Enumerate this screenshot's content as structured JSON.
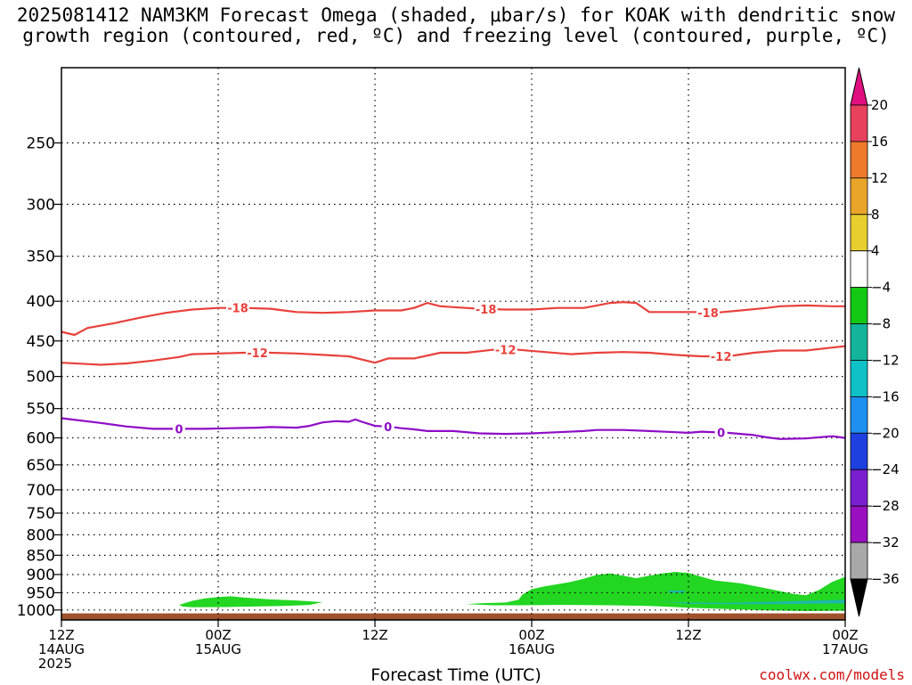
{
  "title_line1": "2025081412 NAM3KM Forecast Omega (shaded, μbar/s) for KOAK with dendritic snow",
  "title_line2": "growth region (contoured, red, ºC) and freezing level (contoured, purple, ºC)",
  "x_axis_label": "Forecast Time (UTC)",
  "credit": "coolwx.com/models",
  "colors": {
    "dgz": "#e8413c",
    "freezing": "#8e0cc6",
    "ground": "#a0522d",
    "omega_light_green": "#22d622",
    "omega_teal": "#1fb8a8"
  },
  "chart_data": {
    "type": "line",
    "y_scale": "log-pressure",
    "y_axis": {
      "ticks": [
        250,
        300,
        350,
        400,
        450,
        500,
        550,
        600,
        650,
        700,
        750,
        800,
        850,
        900,
        950,
        1000
      ],
      "range_hPa": [
        200,
        1030
      ],
      "inverted": true
    },
    "x_axis": {
      "range_hours": [
        0,
        60
      ],
      "ticks": [
        {
          "hour": 0,
          "label1": "12Z",
          "label2": "14AUG",
          "label3": "2025"
        },
        {
          "hour": 12,
          "label1": "00Z",
          "label2": "15AUG",
          "label3": ""
        },
        {
          "hour": 24,
          "label1": "12Z",
          "label2": "",
          "label3": ""
        },
        {
          "hour": 36,
          "label1": "00Z",
          "label2": "16AUG",
          "label3": ""
        },
        {
          "hour": 48,
          "label1": "12Z",
          "label2": "",
          "label3": ""
        },
        {
          "hour": 60,
          "label1": "00Z",
          "label2": "17AUG",
          "label3": ""
        }
      ]
    },
    "grid": "dotted",
    "series": [
      {
        "name": "-18",
        "color_key": "dgz",
        "label_at_hours": [
          13.5,
          32.5,
          49.5
        ],
        "points": [
          [
            0,
            438
          ],
          [
            1,
            442
          ],
          [
            2,
            433
          ],
          [
            4,
            427
          ],
          [
            6,
            420
          ],
          [
            8,
            414
          ],
          [
            10,
            410
          ],
          [
            12,
            408
          ],
          [
            14,
            408
          ],
          [
            16,
            409
          ],
          [
            17,
            411
          ],
          [
            18,
            413
          ],
          [
            20,
            414
          ],
          [
            22,
            413
          ],
          [
            24,
            411
          ],
          [
            26,
            411
          ],
          [
            27,
            408
          ],
          [
            28,
            402
          ],
          [
            29,
            406
          ],
          [
            30,
            407
          ],
          [
            32,
            409
          ],
          [
            34,
            410
          ],
          [
            36,
            410
          ],
          [
            38,
            408
          ],
          [
            40,
            408
          ],
          [
            41,
            405
          ],
          [
            42,
            402
          ],
          [
            43,
            401
          ],
          [
            44,
            402
          ],
          [
            45,
            413
          ],
          [
            47,
            413
          ],
          [
            49,
            413
          ],
          [
            50,
            414
          ],
          [
            52,
            411
          ],
          [
            54,
            408
          ],
          [
            55,
            406
          ],
          [
            57,
            405
          ],
          [
            59,
            406
          ],
          [
            60,
            406
          ]
        ]
      },
      {
        "name": "-12",
        "color_key": "dgz",
        "label_at_hours": [
          15,
          34,
          50.5
        ],
        "points": [
          [
            0,
            480
          ],
          [
            2,
            482
          ],
          [
            3,
            483
          ],
          [
            5,
            481
          ],
          [
            7,
            477
          ],
          [
            9,
            472
          ],
          [
            10,
            468
          ],
          [
            12,
            467
          ],
          [
            14,
            466
          ],
          [
            16,
            466
          ],
          [
            18,
            467
          ],
          [
            20,
            469
          ],
          [
            22,
            471
          ],
          [
            24,
            480
          ],
          [
            25,
            474
          ],
          [
            27,
            474
          ],
          [
            29,
            466
          ],
          [
            31,
            466
          ],
          [
            33,
            462
          ],
          [
            35,
            462
          ],
          [
            37,
            465
          ],
          [
            39,
            468
          ],
          [
            41,
            466
          ],
          [
            43,
            465
          ],
          [
            45,
            466
          ],
          [
            47,
            469
          ],
          [
            49,
            471
          ],
          [
            51,
            471
          ],
          [
            53,
            466
          ],
          [
            55,
            463
          ],
          [
            57,
            463
          ],
          [
            59,
            459
          ],
          [
            60,
            457
          ]
        ]
      },
      {
        "name": "0",
        "color_key": "freezing",
        "label_at_hours": [
          9,
          25,
          50.5
        ],
        "points": [
          [
            0,
            566
          ],
          [
            3,
            574
          ],
          [
            5,
            580
          ],
          [
            7,
            584
          ],
          [
            9,
            584
          ],
          [
            11,
            584
          ],
          [
            13,
            583
          ],
          [
            15,
            582
          ],
          [
            16,
            581
          ],
          [
            18,
            582
          ],
          [
            19,
            579
          ],
          [
            20,
            573
          ],
          [
            21,
            571
          ],
          [
            22,
            572
          ],
          [
            22.5,
            568
          ],
          [
            23,
            572
          ],
          [
            24,
            579
          ],
          [
            25,
            580
          ],
          [
            26,
            583
          ],
          [
            27,
            585
          ],
          [
            28,
            588
          ],
          [
            30,
            588
          ],
          [
            32,
            592
          ],
          [
            34,
            593
          ],
          [
            36,
            592
          ],
          [
            38,
            590
          ],
          [
            40,
            588
          ],
          [
            41,
            586
          ],
          [
            43,
            586
          ],
          [
            45,
            588
          ],
          [
            47,
            590
          ],
          [
            48,
            591
          ],
          [
            49,
            589
          ],
          [
            51,
            591
          ],
          [
            53,
            595
          ],
          [
            54,
            599
          ],
          [
            55,
            602
          ],
          [
            57,
            601
          ],
          [
            59,
            597
          ],
          [
            60,
            600
          ]
        ]
      }
    ],
    "omega_shading": [
      {
        "value_range": "-8 to -4 μbar/s",
        "color_key": "omega_light_green",
        "area": "1000-960 hPa near 00Z 15AUG"
      },
      {
        "value_range": "-8 to -4 μbar/s",
        "color_key": "omega_light_green",
        "area": "1010-880 hPa from 18Z 15AUG to 00Z 17AUG"
      },
      {
        "value_range": "-12 to -8 μbar/s",
        "color_key": "omega_teal",
        "area": "small spots near 945 and 975 hPa, 16AUG"
      }
    ],
    "colorbar": {
      "ticks": [
        "20",
        "16",
        "12",
        "8",
        "4",
        "−4",
        "−8",
        "−12",
        "−16",
        "−20",
        "−24",
        "−28",
        "−32",
        "−36"
      ],
      "colors": [
        "#e8415d",
        "#ee7a2c",
        "#e8a52a",
        "#e8ce2e",
        "#ffffff",
        "#14c814",
        "#14b49b",
        "#0fc2c7",
        "#1d8ff0",
        "#1e40e0",
        "#7a1fd0",
        "#9a0fc0",
        "#a8a8a8"
      ],
      "top_arrow_color": "#e01080",
      "bottom_arrow_color": "#000000"
    }
  }
}
